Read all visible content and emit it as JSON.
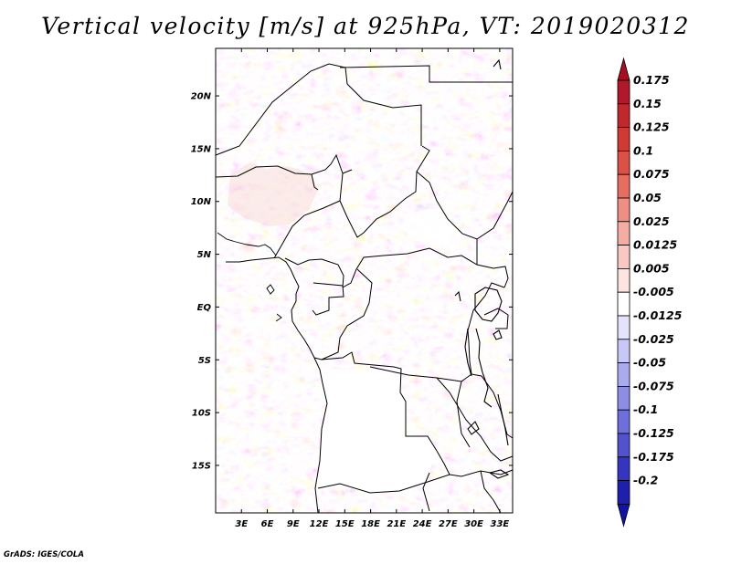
{
  "title": "Vertical velocity [m/s] at 925hPa, VT: 2019020312",
  "credit": "GrADS: IGES/COLA",
  "map": {
    "lat_labels": [
      {
        "lat": 20,
        "label": "20N"
      },
      {
        "lat": 15,
        "label": "15N"
      },
      {
        "lat": 10,
        "label": "10N"
      },
      {
        "lat": 5,
        "label": "5N"
      },
      {
        "lat": 0,
        "label": "EQ"
      },
      {
        "lat": -5,
        "label": "5S"
      },
      {
        "lat": -10,
        "label": "10S"
      },
      {
        "lat": -15,
        "label": "15S"
      }
    ],
    "lon_labels": [
      {
        "lon": 3,
        "label": "3E"
      },
      {
        "lon": 6,
        "label": "6E"
      },
      {
        "lon": 9,
        "label": "9E"
      },
      {
        "lon": 12,
        "label": "12E"
      },
      {
        "lon": 15,
        "label": "15E"
      },
      {
        "lon": 18,
        "label": "18E"
      },
      {
        "lon": 21,
        "label": "21E"
      },
      {
        "lon": 24,
        "label": "24E"
      },
      {
        "lon": 27,
        "label": "27E"
      },
      {
        "lon": 30,
        "label": "30E"
      },
      {
        "lon": 33,
        "label": "33E"
      }
    ],
    "lon_range": [
      0,
      34.5
    ],
    "lat_range": [
      -19.5,
      24.5
    ]
  },
  "colorbar": {
    "levels": [
      {
        "label": "0.175",
        "color": "#b2182b"
      },
      {
        "label": "0.15",
        "color": "#c0282d"
      },
      {
        "label": "0.125",
        "color": "#cf3a34"
      },
      {
        "label": "0.1",
        "color": "#dc5146"
      },
      {
        "label": "0.075",
        "color": "#e66e61"
      },
      {
        "label": "0.05",
        "color": "#ef8e82"
      },
      {
        "label": "0.025",
        "color": "#f5aca3"
      },
      {
        "label": "0.0125",
        "color": "#f9c8c2"
      },
      {
        "label": "0.005",
        "color": "#fde4e0"
      },
      {
        "label": "-0.005",
        "color": "#ffffff"
      },
      {
        "label": "-0.0125",
        "color": "#e3e3fb"
      },
      {
        "label": "-0.025",
        "color": "#c8c8f6"
      },
      {
        "label": "-0.05",
        "color": "#aaaaef"
      },
      {
        "label": "-0.075",
        "color": "#8d8de6"
      },
      {
        "label": "-0.1",
        "color": "#6f6fdc"
      },
      {
        "label": "-0.125",
        "color": "#5252cf"
      },
      {
        "label": "-0.175",
        "color": "#3535c0"
      },
      {
        "label": "-0.2",
        "color": "#1f1fae"
      }
    ],
    "bottom_color": "#1414a3",
    "top_color": "#a50f24"
  }
}
